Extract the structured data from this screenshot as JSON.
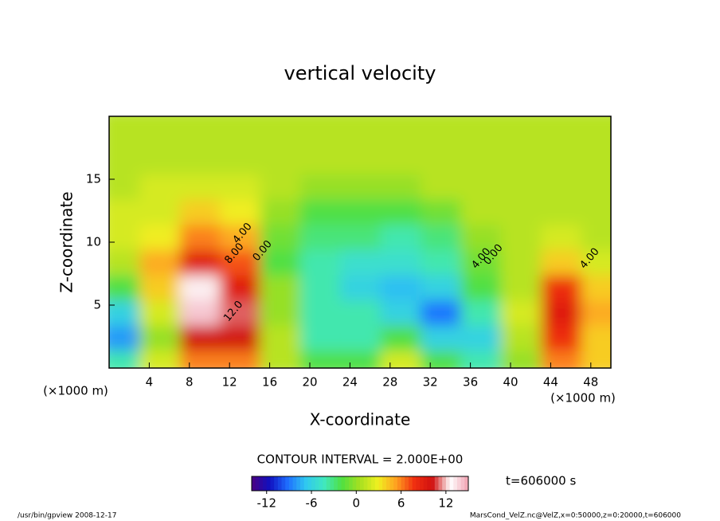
{
  "chart_data": {
    "type": "heatmap",
    "title": "vertical velocity",
    "x_label": "X-coordinate",
    "y_label": "Z-coordinate",
    "x_unit": "(×1000 m)",
    "y_unit": "(×1000 m)",
    "x": [
      2,
      6,
      10,
      14,
      18,
      22,
      26,
      30,
      34,
      38,
      42,
      46,
      50
    ],
    "z": [
      1,
      3,
      5,
      7,
      9,
      11,
      13,
      15,
      17,
      19
    ],
    "values": [
      [
        -4,
        -8,
        -6,
        -2,
        1,
        2,
        2,
        1,
        1,
        1
      ],
      [
        2,
        0,
        2,
        4,
        5,
        3,
        2,
        2,
        1,
        1
      ],
      [
        6,
        10,
        14,
        13,
        9,
        6,
        4,
        2,
        1,
        1
      ],
      [
        6,
        10,
        11,
        9,
        7,
        5,
        3,
        2,
        1,
        1
      ],
      [
        1,
        1,
        0,
        0,
        -2,
        -1,
        0,
        1,
        1,
        1
      ],
      [
        -2,
        -4,
        -4,
        -4,
        -4,
        -3,
        -2,
        0,
        1,
        1
      ],
      [
        -2,
        -4,
        -4,
        -6,
        -5,
        -3,
        -2,
        0,
        1,
        1
      ],
      [
        2,
        -2,
        -6,
        -7,
        -5,
        -4,
        -2,
        0,
        1,
        1
      ],
      [
        -2,
        -6,
        -9,
        -6,
        -4,
        -3,
        -1,
        1,
        1,
        1
      ],
      [
        -4,
        -6,
        -4,
        -2,
        -1,
        0,
        1,
        1,
        1,
        1
      ],
      [
        0,
        1,
        2,
        1,
        1,
        1,
        1,
        1,
        1,
        1
      ],
      [
        6,
        8,
        9,
        8,
        4,
        2,
        1,
        1,
        1,
        1
      ],
      [
        4,
        4,
        5,
        4,
        2,
        1,
        1,
        1,
        1,
        1
      ]
    ],
    "xlim": [
      0,
      50
    ],
    "ylim": [
      0,
      20
    ],
    "xticks": [
      4,
      8,
      12,
      16,
      20,
      24,
      28,
      32,
      36,
      40,
      44,
      48
    ],
    "yticks": [
      5,
      10,
      15
    ],
    "clim": [
      -14,
      15
    ],
    "cticks": [
      -12,
      -6,
      0,
      6,
      12
    ],
    "colormap": [
      "#4b0082",
      "#1010c0",
      "#1e6fff",
      "#30c8f0",
      "#40e8c0",
      "#50e040",
      "#a8e020",
      "#f0f020",
      "#ffa020",
      "#f03010",
      "#d01010",
      "#ffffff",
      "#f0a0b0"
    ],
    "contour_interval": "CONTOUR INTERVAL = 2.000E+00",
    "time_label": "t=606000 s",
    "footer_left": "/usr/bin/gpview  2008-12-17",
    "footer_right": "MarsCond_VelZ.nc@VelZ,x=0:50000,z=0:20000,t=606000",
    "annotations": [
      {
        "text": "4.00",
        "x": 13.3,
        "y": 10.7
      },
      {
        "text": "8.00",
        "x": 12.5,
        "y": 9.1
      },
      {
        "text": "12.0",
        "x": 12.4,
        "y": 4.5
      },
      {
        "text": "0.00",
        "x": 15.3,
        "y": 9.3
      },
      {
        "text": "4.00",
        "x": 37.1,
        "y": 8.7
      },
      {
        "text": "0.00",
        "x": 38.3,
        "y": 9.0
      },
      {
        "text": "4.00",
        "x": 47.9,
        "y": 8.7
      }
    ]
  }
}
